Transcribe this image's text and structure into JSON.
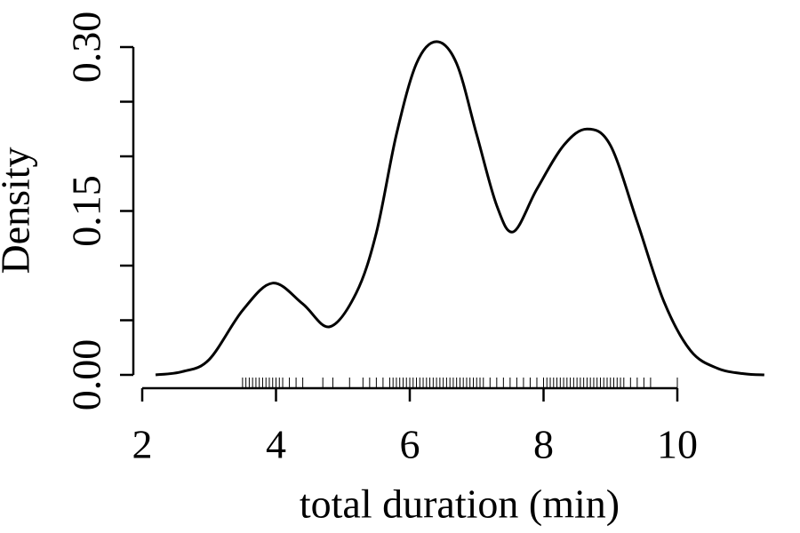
{
  "chart_data": {
    "type": "density",
    "xlabel": "total duration (min)",
    "ylabel": "Density",
    "x": [
      2.2,
      2.6,
      3.0,
      3.5,
      3.95,
      4.4,
      4.8,
      5.2,
      5.5,
      5.8,
      6.1,
      6.4,
      6.7,
      7.0,
      7.3,
      7.55,
      7.9,
      8.3,
      8.65,
      9.0,
      9.4,
      9.8,
      10.2,
      10.6,
      11.0,
      11.3
    ],
    "values": [
      0,
      0.003,
      0.014,
      0.059,
      0.084,
      0.065,
      0.044,
      0.075,
      0.13,
      0.22,
      0.285,
      0.305,
      0.285,
      0.22,
      0.155,
      0.131,
      0.17,
      0.21,
      0.225,
      0.21,
      0.14,
      0.067,
      0.022,
      0.006,
      0.001,
      0
    ],
    "rug": [
      3.5,
      3.55,
      3.6,
      3.65,
      3.7,
      3.75,
      3.8,
      3.85,
      3.9,
      3.95,
      4.0,
      4.05,
      4.1,
      4.2,
      4.3,
      4.4,
      4.7,
      4.85,
      5.1,
      5.3,
      5.4,
      5.5,
      5.6,
      5.7,
      5.75,
      5.8,
      5.85,
      5.9,
      5.95,
      6.0,
      6.05,
      6.1,
      6.15,
      6.2,
      6.25,
      6.3,
      6.35,
      6.4,
      6.45,
      6.5,
      6.55,
      6.6,
      6.65,
      6.7,
      6.75,
      6.8,
      6.85,
      6.9,
      6.95,
      7.0,
      7.05,
      7.1,
      7.2,
      7.3,
      7.4,
      7.5,
      7.6,
      7.7,
      7.8,
      7.9,
      8.0,
      8.05,
      8.1,
      8.15,
      8.2,
      8.25,
      8.3,
      8.35,
      8.4,
      8.45,
      8.5,
      8.55,
      8.6,
      8.65,
      8.7,
      8.75,
      8.8,
      8.85,
      8.9,
      8.95,
      9.0,
      9.05,
      9.1,
      9.15,
      9.2,
      9.3,
      9.4,
      9.5,
      9.6,
      10.0
    ],
    "color": "#000000",
    "xlim": [
      2,
      10
    ],
    "xticks": [
      2,
      4,
      6,
      8,
      10
    ],
    "ylim": [
      0,
      0.3
    ],
    "yticks": [
      {
        "value": 0,
        "label": "0.00"
      },
      0.15,
      {
        "value": 0.3,
        "label": "0.30"
      }
    ],
    "yminorticks": [
      0.05,
      0.1,
      0.2,
      0.25
    ]
  }
}
